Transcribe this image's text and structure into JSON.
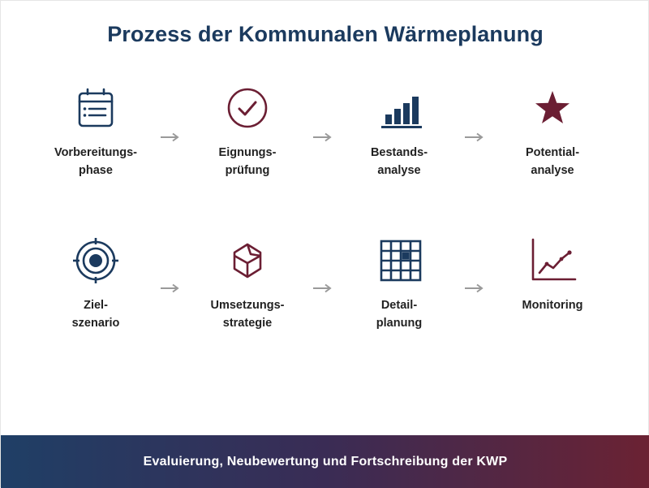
{
  "title": "Prozess der Kommunalen Wärmeplanung",
  "colors": {
    "navy": "#1b3a5e",
    "burgundy": "#6b1e33",
    "arrow": "#9a9a9a"
  },
  "steps": [
    {
      "icon": "calendar-list-icon",
      "line1": "Vorbereitungs-",
      "line2": "phase"
    },
    {
      "icon": "check-circle-icon",
      "line1": "Eignungs-",
      "line2": "prüfung"
    },
    {
      "icon": "bar-chart-icon",
      "line1": "Bestands-",
      "line2": "analyse"
    },
    {
      "icon": "star-icon",
      "line1": "Potential-",
      "line2": "analyse"
    },
    {
      "icon": "target-icon",
      "line1": "Ziel-",
      "line2": "szenario"
    },
    {
      "icon": "cube-icon",
      "line1": "Umsetzungs-",
      "line2": "strategie"
    },
    {
      "icon": "grid-icon",
      "line1": "Detail-",
      "line2": "planung"
    },
    {
      "icon": "line-chart-icon",
      "line1": "Monitoring",
      "line2": ""
    }
  ],
  "footer": {
    "text": "Evaluierung, Neubewertung und Fortschreibung der KWP"
  }
}
